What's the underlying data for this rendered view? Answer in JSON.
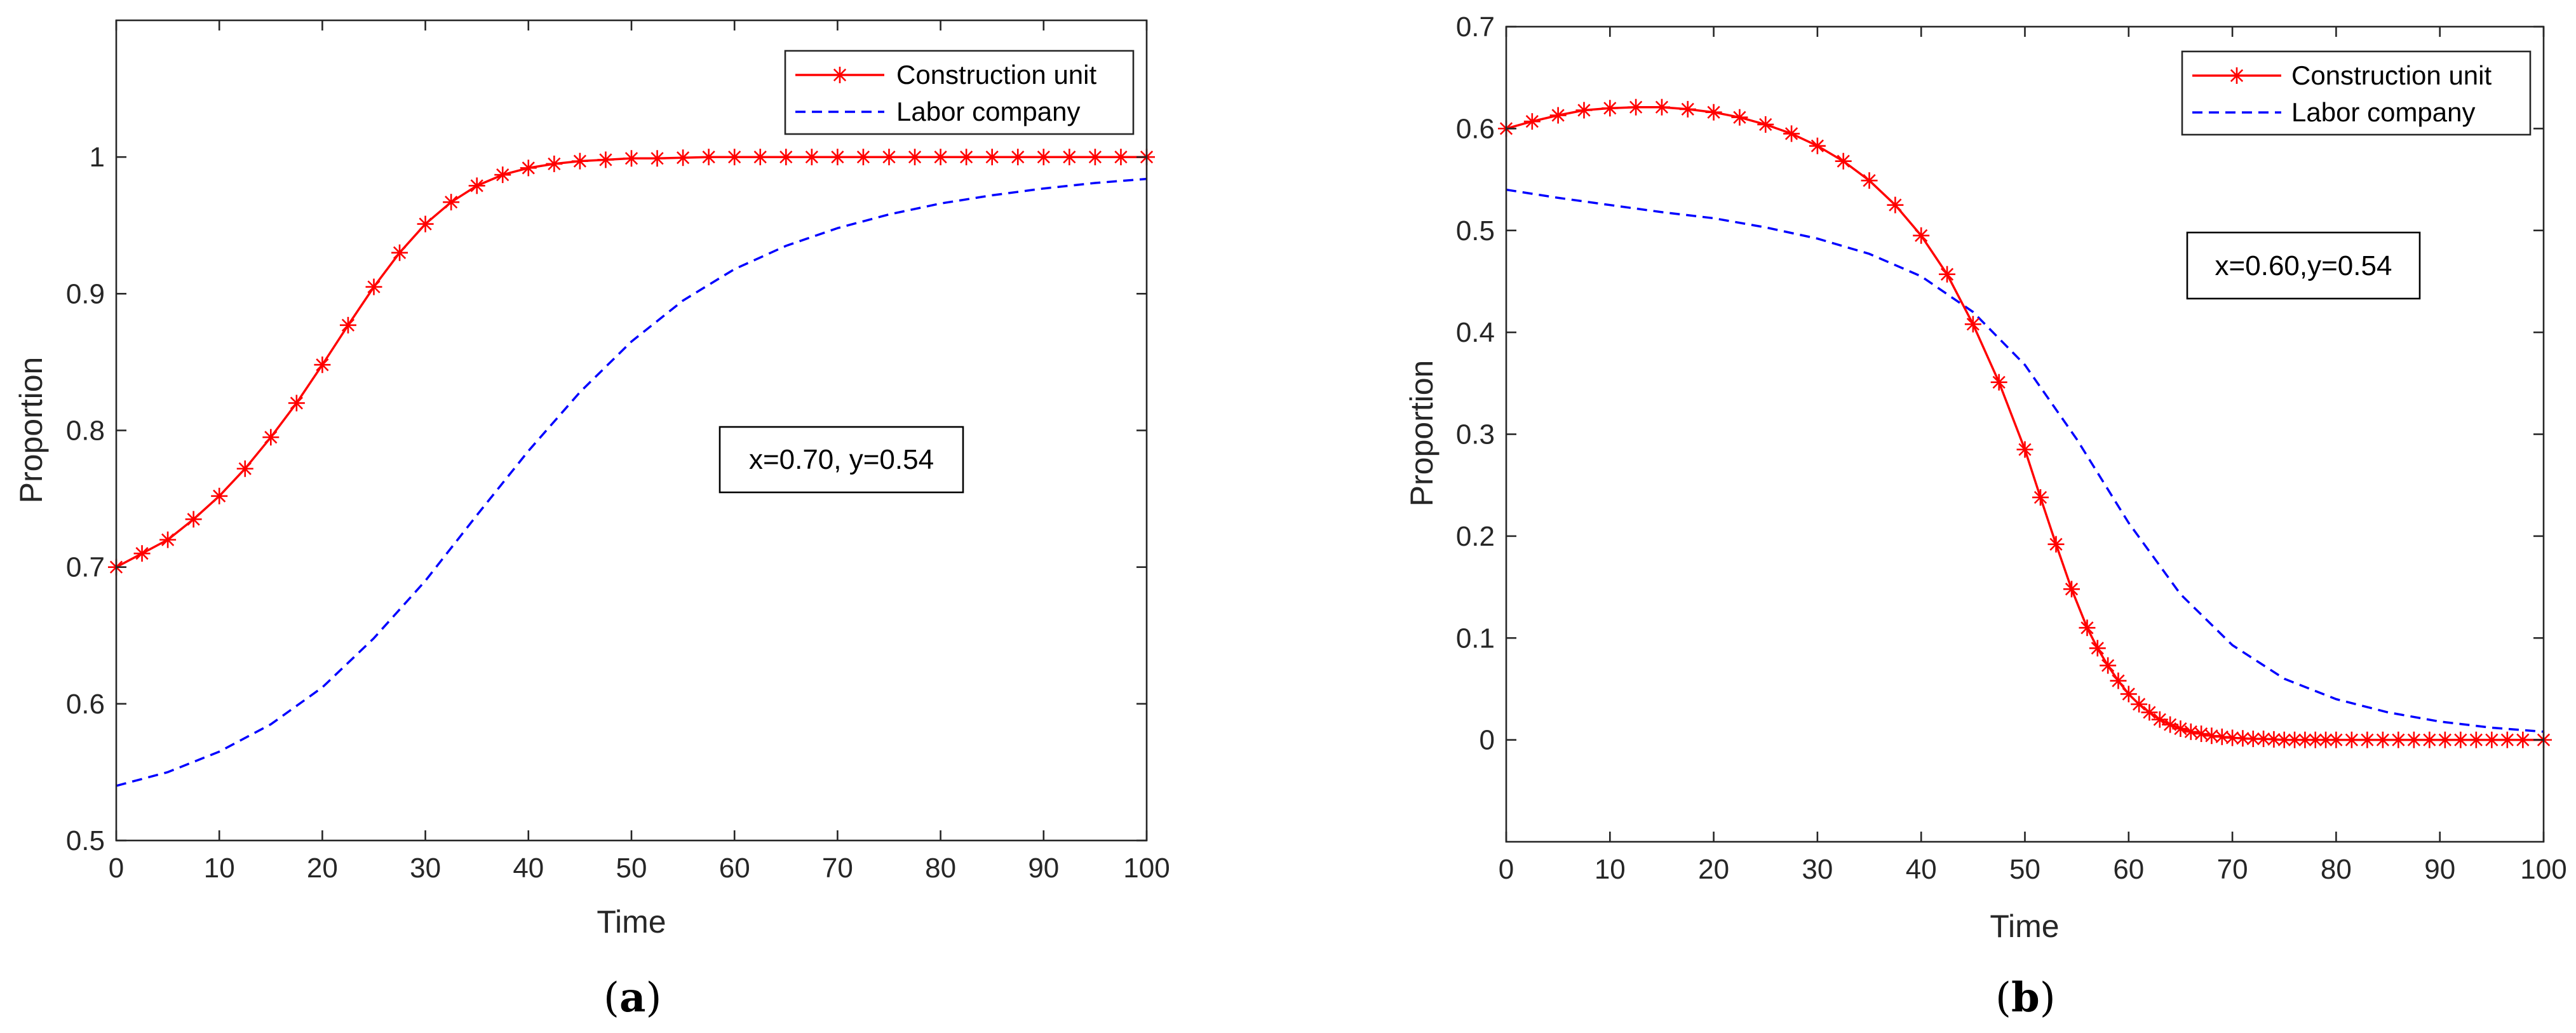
{
  "chart_data": [
    {
      "type": "line",
      "panel_label": "a",
      "xlabel": "Time",
      "ylabel": "Proportion",
      "xlim": [
        0,
        100
      ],
      "ylim": [
        0.5,
        1.1
      ],
      "xticks": [
        "0",
        "10",
        "20",
        "30",
        "40",
        "50",
        "60",
        "70",
        "80",
        "90",
        "100"
      ],
      "yticks": [
        "0.5",
        "0.6",
        "0.7",
        "0.8",
        "0.9",
        "1"
      ],
      "annotation": "x=0.70, y=0.54",
      "legend": "top-right",
      "box": true,
      "grid": false,
      "series": [
        {
          "name": "Construction unit",
          "color": "#ff0000",
          "style": "solid",
          "marker": "asterisk",
          "x": [
            0,
            2.5,
            5,
            7.5,
            10,
            12.5,
            15,
            17.5,
            20,
            22.5,
            25,
            27.5,
            30,
            32.5,
            35,
            37.5,
            40,
            42.5,
            45,
            47.5,
            50,
            52.5,
            55,
            57.5,
            60,
            62.5,
            65,
            67.5,
            70,
            72.5,
            75,
            77.5,
            80,
            82.5,
            85,
            87.5,
            90,
            92.5,
            95,
            97.5,
            100
          ],
          "y": [
            0.7,
            0.71,
            0.72,
            0.735,
            0.752,
            0.772,
            0.795,
            0.82,
            0.848,
            0.877,
            0.905,
            0.93,
            0.951,
            0.967,
            0.979,
            0.987,
            0.992,
            0.995,
            0.997,
            0.998,
            0.999,
            0.999,
            0.9995,
            1,
            1,
            1,
            1,
            1,
            1,
            1,
            1,
            1,
            1,
            1,
            1,
            1,
            1,
            1,
            1,
            1,
            1
          ]
        },
        {
          "name": "Labor company",
          "color": "#0000ff",
          "style": "dashed",
          "x": [
            0,
            5,
            10,
            15,
            20,
            25,
            30,
            35,
            40,
            45,
            50,
            55,
            60,
            65,
            70,
            75,
            80,
            85,
            90,
            95,
            100
          ],
          "y": [
            0.54,
            0.55,
            0.565,
            0.585,
            0.612,
            0.648,
            0.69,
            0.738,
            0.785,
            0.828,
            0.865,
            0.895,
            0.918,
            0.935,
            0.948,
            0.958,
            0.966,
            0.972,
            0.977,
            0.981,
            0.984
          ]
        }
      ]
    },
    {
      "type": "line",
      "panel_label": "b",
      "xlabel": "Time",
      "ylabel": "Proportion",
      "xlim": [
        0,
        100
      ],
      "ylim": [
        -0.1,
        0.7
      ],
      "xticks": [
        "0",
        "10",
        "20",
        "30",
        "40",
        "50",
        "60",
        "70",
        "80",
        "90",
        "100"
      ],
      "yticks": [
        "0",
        "0.1",
        "0.2",
        "0.3",
        "0.4",
        "0.5",
        "0.6",
        "0.7"
      ],
      "annotation": "x=0.60,y=0.54",
      "legend": "top-right",
      "box": true,
      "grid": false,
      "series": [
        {
          "name": "Construction unit",
          "color": "#ff0000",
          "style": "solid",
          "marker": "asterisk",
          "x": [
            0,
            2.5,
            5,
            7.5,
            10,
            12.5,
            15,
            17.5,
            20,
            22.5,
            25,
            27.5,
            30,
            32.5,
            35,
            37.5,
            40,
            42.5,
            45,
            47.5,
            50,
            51.5,
            53,
            54.5,
            56,
            57,
            58,
            59,
            60,
            61,
            62,
            63,
            64,
            65,
            66,
            67,
            68,
            69,
            70,
            71,
            72,
            73,
            74,
            75,
            76,
            77,
            78,
            79,
            80,
            81.5,
            83,
            84.5,
            86,
            87.5,
            89,
            90.5,
            92,
            93.5,
            95,
            96.5,
            98,
            100
          ],
          "y": [
            0.6,
            0.607,
            0.613,
            0.618,
            0.62,
            0.621,
            0.621,
            0.619,
            0.616,
            0.611,
            0.604,
            0.595,
            0.583,
            0.568,
            0.549,
            0.525,
            0.495,
            0.457,
            0.408,
            0.351,
            0.285,
            0.238,
            0.192,
            0.148,
            0.11,
            0.09,
            0.073,
            0.058,
            0.045,
            0.035,
            0.027,
            0.02,
            0.015,
            0.011,
            0.008,
            0.006,
            0.004,
            0.003,
            0.002,
            0.0015,
            0.001,
            0.001,
            0.0005,
            0,
            0,
            0,
            0,
            0,
            0,
            0,
            0,
            0,
            0,
            0,
            0,
            0,
            0,
            0,
            0,
            0,
            0,
            0
          ]
        },
        {
          "name": "Labor company",
          "color": "#0000ff",
          "style": "dashed",
          "x": [
            0,
            5,
            10,
            15,
            20,
            25,
            30,
            35,
            40,
            45,
            50,
            55,
            60,
            65,
            70,
            75,
            80,
            85,
            90,
            95,
            100
          ],
          "y": [
            0.54,
            0.532,
            0.525,
            0.518,
            0.512,
            0.503,
            0.492,
            0.477,
            0.455,
            0.42,
            0.368,
            0.295,
            0.213,
            0.143,
            0.093,
            0.06,
            0.04,
            0.027,
            0.018,
            0.012,
            0.008
          ]
        }
      ]
    }
  ]
}
